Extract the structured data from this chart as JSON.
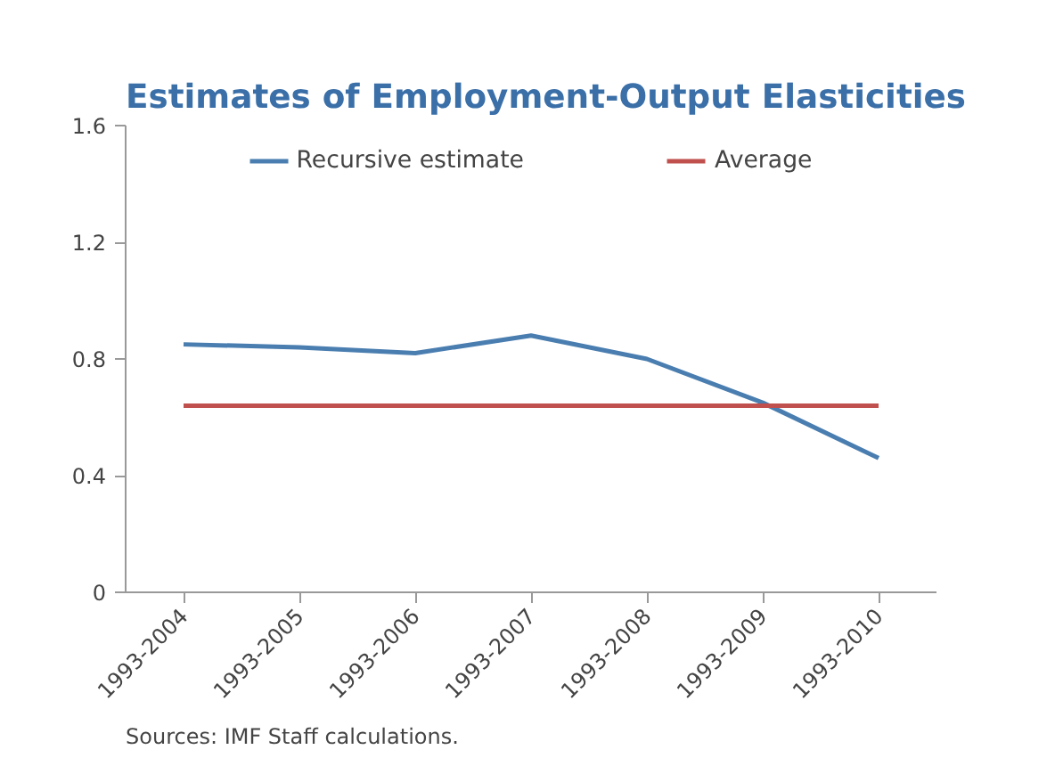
{
  "chart_data": {
    "type": "line",
    "title": "Estimates of Employment-Output Elasticities",
    "categories": [
      "1993-2004",
      "1993-2005",
      "1993-2006",
      "1993-2007",
      "1993-2008",
      "1993-2009",
      "1993-2010"
    ],
    "series": [
      {
        "name": "Recursive estimate",
        "color": "#4a7eb0",
        "values": [
          0.85,
          0.84,
          0.82,
          0.88,
          0.8,
          0.65,
          0.46
        ]
      },
      {
        "name": "Average",
        "color": "#c0504d",
        "values": [
          0.64,
          0.64,
          0.64,
          0.64,
          0.64,
          0.64,
          0.64
        ]
      }
    ],
    "ylim": [
      0,
      1.6
    ],
    "yticks": [
      0,
      {
        "value": 0.4,
        "label": "0.4"
      },
      {
        "value": 0.8,
        "label": "0.8"
      },
      {
        "value": 1.2,
        "label": "1.2"
      },
      {
        "value": 1.6,
        "label": "1.6"
      }
    ],
    "grid": false,
    "legend": "top",
    "marker": "none",
    "annotations": [
      "Sources: IMF Staff calculations."
    ]
  }
}
